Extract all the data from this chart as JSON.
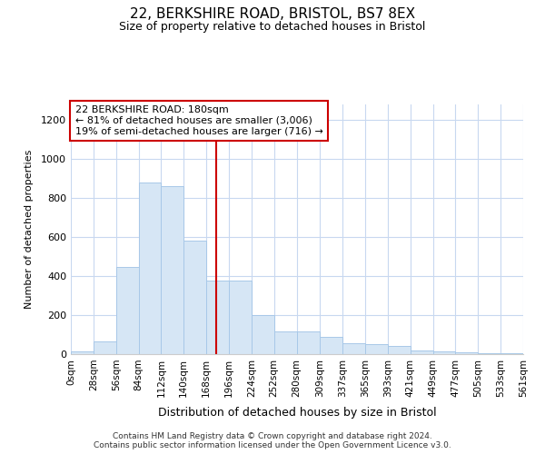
{
  "title_line1": "22, BERKSHIRE ROAD, BRISTOL, BS7 8EX",
  "title_line2": "Size of property relative to detached houses in Bristol",
  "xlabel": "Distribution of detached houses by size in Bristol",
  "ylabel": "Number of detached properties",
  "annotation_line1": "22 BERKSHIRE ROAD: 180sqm",
  "annotation_line2": "← 81% of detached houses are smaller (3,006)",
  "annotation_line3": "19% of semi-detached houses are larger (716) →",
  "property_size_sqm": 180,
  "bin_edges": [
    0,
    28,
    56,
    84,
    112,
    140,
    168,
    196,
    224,
    252,
    280,
    309,
    337,
    365,
    393,
    421,
    449,
    477,
    505,
    533,
    561
  ],
  "bar_heights": [
    12,
    65,
    445,
    880,
    860,
    580,
    375,
    375,
    200,
    115,
    115,
    88,
    55,
    50,
    40,
    18,
    12,
    10,
    6,
    4
  ],
  "bar_color": "#d6e6f5",
  "bar_edge_color": "#a8c8e8",
  "vline_color": "#cc0000",
  "vline_x": 180,
  "annotation_box_color": "#ffffff",
  "annotation_box_edge_color": "#cc0000",
  "background_color": "#ffffff",
  "grid_color": "#c8d8f0",
  "ylim": [
    0,
    1280
  ],
  "yticks": [
    0,
    200,
    400,
    600,
    800,
    1000,
    1200
  ],
  "footer_line1": "Contains HM Land Registry data © Crown copyright and database right 2024.",
  "footer_line2": "Contains public sector information licensed under the Open Government Licence v3.0."
}
